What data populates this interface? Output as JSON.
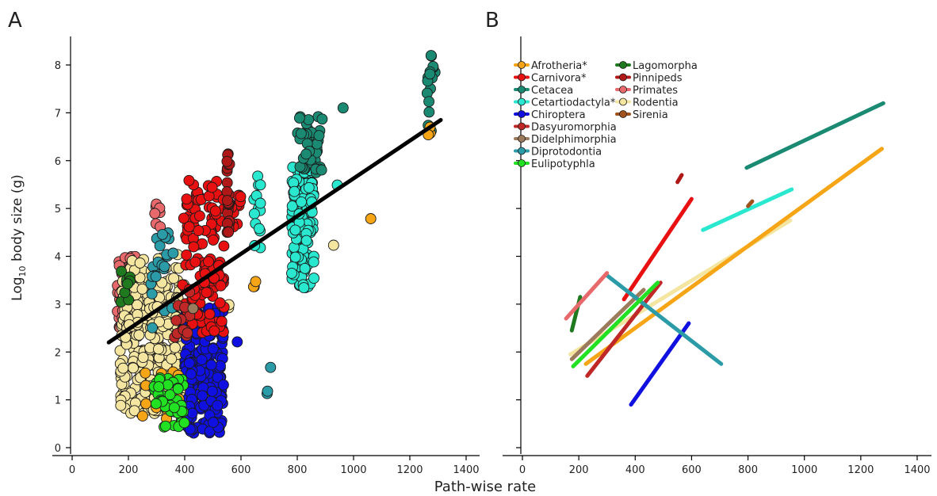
{
  "figure": {
    "xlabel": "Path-wise rate",
    "ylabel_main": "Log",
    "ylabel_sub": "10",
    "ylabel_rest": " body size (g)"
  },
  "chart_data": [
    {
      "panel": "A",
      "type": "scatter",
      "xlim": [
        0,
        1400
      ],
      "ylim": [
        0,
        8
      ],
      "xticks": [
        0,
        200,
        400,
        600,
        800,
        1000,
        1200,
        1400
      ],
      "yticks": [
        0,
        1,
        2,
        3,
        4,
        5,
        6,
        7,
        8
      ],
      "xlabel": "Path-wise rate",
      "ylabel": "Log10 body size (g)",
      "grid": false,
      "groups": [
        {
          "name": "Primates",
          "color": "#E8696B",
          "clusters": [
            {
              "xr": [
                160,
                240
              ],
              "yr": [
                2.3,
                4.0
              ],
              "n": 90
            },
            {
              "xr": [
                290,
                320
              ],
              "yr": [
                4.6,
                5.2
              ],
              "n": 8
            }
          ]
        },
        {
          "name": "Rodentia",
          "color": "#F4E5A1",
          "clusters": [
            {
              "xr": [
                170,
                400
              ],
              "yr": [
                0.7,
                3.5
              ],
              "n": 300
            },
            {
              "xr": [
                200,
                380
              ],
              "yr": [
                2.5,
                4.1
              ],
              "n": 60
            },
            {
              "xr": [
                550,
                560
              ],
              "yr": [
                2.8,
                3.0
              ],
              "n": 2
            },
            {
              "xr": [
                920,
                930
              ],
              "yr": [
                4.2,
                4.3
              ],
              "n": 1
            }
          ]
        },
        {
          "name": "Chiroptera",
          "color": "#1010E0",
          "clusters": [
            {
              "xr": [
                400,
                540
              ],
              "yr": [
                0.3,
                3.0
              ],
              "n": 200
            },
            {
              "xr": [
                580,
                590
              ],
              "yr": [
                2.2,
                2.3
              ],
              "n": 1
            }
          ]
        },
        {
          "name": "Carnivora*",
          "color": "#E81010",
          "clusters": [
            {
              "xr": [
                390,
                540
              ],
              "yr": [
                2.4,
                5.6
              ],
              "n": 140
            },
            {
              "xr": [
                560,
                600
              ],
              "yr": [
                4.6,
                5.3
              ],
              "n": 12
            }
          ]
        },
        {
          "name": "Pinnipeds",
          "color": "#B01818",
          "clusters": [
            {
              "xr": [
                550,
                560
              ],
              "yr": [
                4.5,
                6.2
              ],
              "n": 25
            }
          ]
        },
        {
          "name": "Cetartiodactyla*",
          "color": "#2AE8CF",
          "clusters": [
            {
              "xr": [
                640,
                670
              ],
              "yr": [
                4.0,
                5.8
              ],
              "n": 14
            },
            {
              "xr": [
                780,
                860
              ],
              "yr": [
                3.3,
                5.9
              ],
              "n": 130
            },
            {
              "xr": [
                930,
                950
              ],
              "yr": [
                5.4,
                5.5
              ],
              "n": 1
            }
          ]
        },
        {
          "name": "Cetacea",
          "color": "#1A8A72",
          "clusters": [
            {
              "xr": [
                800,
                890
              ],
              "yr": [
                5.7,
                7.1
              ],
              "n": 40
            },
            {
              "xr": [
                955,
                965
              ],
              "yr": [
                7.1,
                7.2
              ],
              "n": 1
            },
            {
              "xr": [
                1260,
                1290
              ],
              "yr": [
                6.6,
                8.2
              ],
              "n": 16
            }
          ]
        },
        {
          "name": "Diprotodontia",
          "color": "#2B9BA8",
          "clusters": [
            {
              "xr": [
                280,
                360
              ],
              "yr": [
                2.5,
                4.5
              ],
              "n": 25
            },
            {
              "xr": [
                690,
                710
              ],
              "yr": [
                0.95,
                1.75
              ],
              "n": 3
            }
          ]
        },
        {
          "name": "Afrotheria*",
          "color": "#F5A516",
          "clusters": [
            {
              "xr": [
                250,
                400
              ],
              "yr": [
                0.6,
                1.6
              ],
              "n": 14
            },
            {
              "xr": [
                640,
                660
              ],
              "yr": [
                3.35,
                3.5
              ],
              "n": 3
            },
            {
              "xr": [
                1060,
                1070
              ],
              "yr": [
                4.7,
                4.8
              ],
              "n": 1
            },
            {
              "xr": [
                1265,
                1275
              ],
              "yr": [
                6.5,
                6.7
              ],
              "n": 3
            }
          ]
        },
        {
          "name": "Eulipotyphla",
          "color": "#22E022",
          "clusters": [
            {
              "xr": [
                290,
                400
              ],
              "yr": [
                0.4,
                1.5
              ],
              "n": 40
            }
          ]
        },
        {
          "name": "Dasyuromorphia",
          "color": "#C02828",
          "clusters": [
            {
              "xr": [
                360,
                420
              ],
              "yr": [
                2.3,
                3.3
              ],
              "n": 12
            }
          ]
        },
        {
          "name": "Lagomorpha",
          "color": "#1F7A1F",
          "clusters": [
            {
              "xr": [
                170,
                210
              ],
              "yr": [
                3.0,
                3.7
              ],
              "n": 8
            }
          ]
        },
        {
          "name": "Didelphimorphia",
          "color": "#9C7A5C",
          "clusters": [
            {
              "xr": [
                420,
                430
              ],
              "yr": [
                2.8,
                2.95
              ],
              "n": 1
            }
          ]
        }
      ],
      "fit_line": {
        "color": "#000000",
        "points": [
          [
            130,
            2.2
          ],
          [
            1310,
            6.85
          ]
        ]
      }
    },
    {
      "panel": "B",
      "type": "line",
      "xlim": [
        0,
        1400
      ],
      "ylim": [
        0,
        8
      ],
      "xticks": [
        0,
        200,
        400,
        600,
        800,
        1000,
        1200,
        1400
      ],
      "grid": false,
      "legend_position": "top-left",
      "legend_col1": [
        "Afrotheria*",
        "Carnivora*",
        "Cetacea",
        "Cetartiodactyla*",
        "Chiroptera",
        "Dasyuromorphia",
        "Didelphimorphia",
        "Diprotodontia",
        "Eulipotyphla"
      ],
      "legend_col2": [
        "Lagomorpha",
        "Pinnipeds",
        "Primates",
        "Rodentia",
        "Sirenia"
      ],
      "series": [
        {
          "name": "Rodentia",
          "color": "#F4E5A1",
          "points": [
            [
              170,
              1.95
            ],
            [
              950,
              4.75
            ]
          ]
        },
        {
          "name": "Afrotheria*",
          "color": "#F5A516",
          "points": [
            [
              225,
              1.75
            ],
            [
              1275,
              6.25
            ]
          ]
        },
        {
          "name": "Carnivora*",
          "color": "#E81010",
          "points": [
            [
              360,
              3.1
            ],
            [
              600,
              5.2
            ]
          ]
        },
        {
          "name": "Cetacea",
          "color": "#1A8A72",
          "points": [
            [
              795,
              5.85
            ],
            [
              1280,
              7.2
            ]
          ]
        },
        {
          "name": "Cetartiodactyla*",
          "color": "#2AE8CF",
          "points": [
            [
              640,
              4.55
            ],
            [
              955,
              5.4
            ]
          ]
        },
        {
          "name": "Chiroptera",
          "color": "#1010E0",
          "points": [
            [
              385,
              0.9
            ],
            [
              590,
              2.6
            ]
          ]
        },
        {
          "name": "Dasyuromorphia",
          "color": "#C02828",
          "points": [
            [
              230,
              1.5
            ],
            [
              490,
              3.45
            ]
          ]
        },
        {
          "name": "Didelphimorphia",
          "color": "#9C7A5C",
          "points": [
            [
              175,
              1.85
            ],
            [
              430,
              3.3
            ]
          ]
        },
        {
          "name": "Diprotodontia",
          "color": "#2B9BA8",
          "points": [
            [
              300,
              3.6
            ],
            [
              705,
              1.75
            ]
          ]
        },
        {
          "name": "Eulipotyphla",
          "color": "#22E022",
          "points": [
            [
              180,
              1.7
            ],
            [
              480,
              3.45
            ]
          ]
        },
        {
          "name": "Lagomorpha",
          "color": "#1F7A1F",
          "points": [
            [
              175,
              2.45
            ],
            [
              205,
              3.15
            ]
          ]
        },
        {
          "name": "Pinnipeds",
          "color": "#B01818",
          "points": [
            [
              550,
              5.55
            ],
            [
              565,
              5.7
            ]
          ]
        },
        {
          "name": "Primates",
          "color": "#E8696B",
          "points": [
            [
              155,
              2.7
            ],
            [
              300,
              3.65
            ]
          ]
        },
        {
          "name": "Sirenia",
          "color": "#A0521D",
          "points": [
            [
              800,
              5.05
            ],
            [
              815,
              5.15
            ]
          ]
        }
      ]
    }
  ],
  "panels": {
    "a_label": "A",
    "b_label": "B"
  }
}
